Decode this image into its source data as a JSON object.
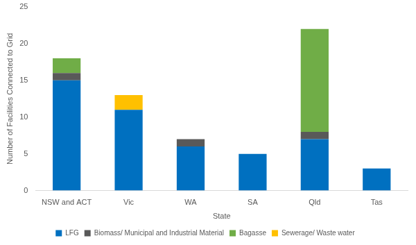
{
  "chart_data": {
    "type": "bar",
    "x_label": "State",
    "y_label": "Number of Facilities Connected to Grid",
    "categories": [
      "NSW and ACT",
      "Vic",
      "WA",
      "SA",
      "Qld",
      "Tas"
    ],
    "series": [
      {
        "name": "LFG",
        "color": "#0070c0",
        "values": [
          15,
          11,
          6,
          5,
          7,
          3
        ]
      },
      {
        "name": "Biomass/ Municipal and Industrial Material",
        "color": "#595959",
        "values": [
          1,
          0,
          1,
          0,
          1,
          0
        ]
      },
      {
        "name": "Bagasse",
        "color": "#70ad47",
        "values": [
          2,
          0,
          0,
          0,
          14,
          0
        ]
      },
      {
        "name": "Sewerage/ Waste water",
        "color": "#ffc000",
        "values": [
          0,
          2,
          0,
          0,
          0,
          0
        ]
      }
    ],
    "stacked": true,
    "ylim": [
      0,
      25
    ],
    "yticks": [
      0,
      5,
      10,
      15,
      20,
      25
    ],
    "grid": false,
    "legend": "bottom"
  }
}
